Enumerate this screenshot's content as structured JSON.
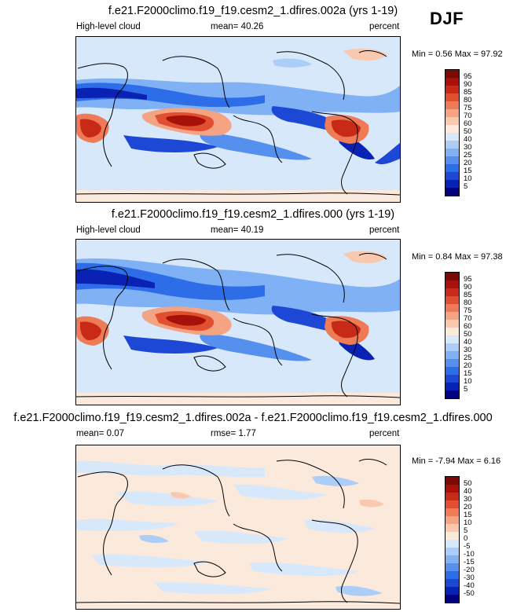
{
  "season": "DJF",
  "panels": [
    {
      "id": "p1",
      "title": "f.e21.F2000climo.f19_f19.cesm2_1.dfires.002a (yrs 1-19)",
      "left_label": "High-level cloud",
      "center_label": "mean=  40.26",
      "right_label": "percent",
      "minmax": "Min =   0.56 Max =  97.92"
    },
    {
      "id": "p2",
      "title": "f.e21.F2000climo.f19_f19.cesm2_1.dfires.000 (yrs 1-19)",
      "left_label": "High-level cloud",
      "center_label": "mean=  40.19",
      "right_label": "percent",
      "minmax": "Min =   0.84 Max =  97.38"
    },
    {
      "id": "p3",
      "title": "f.e21.F2000climo.f19_f19.cesm2_1.dfires.002a - f.e21.F2000climo.f19_f19.cesm2_1.dfires.000",
      "left_label": "mean=  0.07",
      "center_label": "rmse=  1.77",
      "right_label": "percent",
      "minmax": "Min =  -7.94 Max =   6.16"
    }
  ],
  "chart_data": [
    {
      "type": "heatmap",
      "title": "f.e21.F2000climo.f19_f19.cesm2_1.dfires.002a (yrs 1-19)",
      "variable": "High-level cloud",
      "units": "percent",
      "mean": 40.26,
      "min": 0.56,
      "max": 97.92,
      "colorbar_levels": [
        5,
        10,
        15,
        20,
        25,
        30,
        40,
        50,
        60,
        70,
        75,
        80,
        85,
        90,
        95
      ],
      "colorbar_labels": [
        "95",
        "90",
        "85",
        "80",
        "75",
        "70",
        "60",
        "50",
        "40",
        "30",
        "25",
        "20",
        "15",
        "10",
        "5"
      ],
      "colorbar_colors": [
        "#000080",
        "#0a22b4",
        "#1d48d6",
        "#2e6de8",
        "#5590ee",
        "#7fb1f4",
        "#abcdf8",
        "#d8e8fb",
        "#fbe9dc",
        "#f8c9ae",
        "#f4a482",
        "#ee7a56",
        "#e04f30",
        "#c82a18",
        "#a8110a",
        "#7d0808"
      ]
    },
    {
      "type": "heatmap",
      "title": "f.e21.F2000climo.f19_f19.cesm2_1.dfires.000 (yrs 1-19)",
      "variable": "High-level cloud",
      "units": "percent",
      "mean": 40.19,
      "min": 0.84,
      "max": 97.38,
      "colorbar_levels": [
        5,
        10,
        15,
        20,
        25,
        30,
        40,
        50,
        60,
        70,
        75,
        80,
        85,
        90,
        95
      ],
      "colorbar_labels": [
        "95",
        "90",
        "85",
        "80",
        "75",
        "70",
        "60",
        "50",
        "40",
        "30",
        "25",
        "20",
        "15",
        "10",
        "5"
      ],
      "colorbar_colors": [
        "#000080",
        "#0a22b4",
        "#1d48d6",
        "#2e6de8",
        "#5590ee",
        "#7fb1f4",
        "#abcdf8",
        "#d8e8fb",
        "#fbe9dc",
        "#f8c9ae",
        "#f4a482",
        "#ee7a56",
        "#e04f30",
        "#c82a18",
        "#a8110a",
        "#7d0808"
      ]
    },
    {
      "type": "heatmap",
      "title": "f.e21.F2000climo.f19_f19.cesm2_1.dfires.002a - f.e21.F2000climo.f19_f19.cesm2_1.dfires.000",
      "units": "percent",
      "mean": 0.07,
      "rmse": 1.77,
      "min": -7.94,
      "max": 6.16,
      "colorbar_levels": [
        -50,
        -40,
        -30,
        -20,
        -15,
        -10,
        -5,
        0,
        5,
        10,
        15,
        20,
        30,
        40,
        50
      ],
      "colorbar_labels": [
        "50",
        "40",
        "30",
        "20",
        "15",
        "10",
        "5",
        "0",
        "-5",
        "-10",
        "-15",
        "-20",
        "-30",
        "-40",
        "-50"
      ],
      "colorbar_colors": [
        "#000080",
        "#0a22b4",
        "#1d48d6",
        "#2e6de8",
        "#5590ee",
        "#7fb1f4",
        "#abcdf8",
        "#d8e8fb",
        "#fbe9dc",
        "#f8c9ae",
        "#f4a482",
        "#ee7a56",
        "#e04f30",
        "#c82a18",
        "#a8110a",
        "#7d0808"
      ]
    }
  ]
}
